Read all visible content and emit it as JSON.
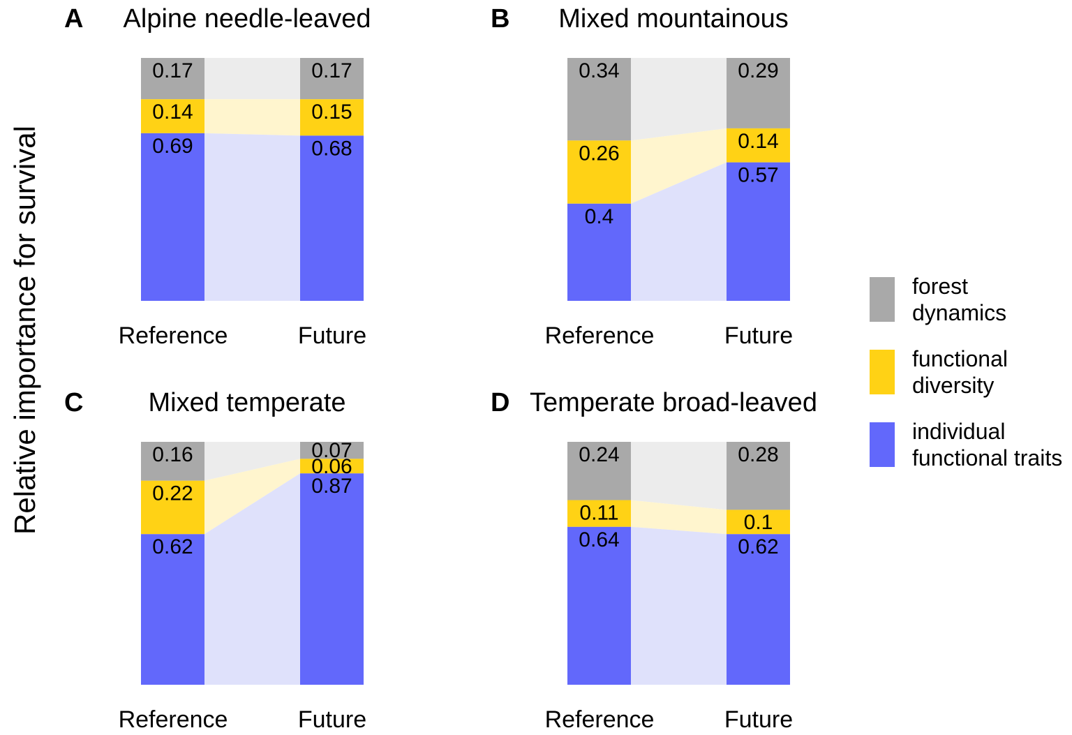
{
  "figure": {
    "ylabel": "Relative importance for survival",
    "x_categories": [
      "Reference",
      "Future"
    ],
    "colors": {
      "forest_dynamics": "#A9A9A9",
      "forest_dynamics_flow": "#ECECEC",
      "functional_diversity": "#FFD215",
      "functional_diversity_flow": "#FFF5CE",
      "individual_functional_traits": "#6268FB",
      "individual_functional_traits_flow": "#DFE1FB",
      "text": "#000000"
    },
    "legend": {
      "items": [
        {
          "key": "forest_dynamics",
          "lines": [
            "forest",
            "dynamics"
          ]
        },
        {
          "key": "functional_diversity",
          "lines": [
            "functional",
            "diversity"
          ]
        },
        {
          "key": "individual_functional_traits",
          "lines": [
            "individual",
            "functional traits"
          ]
        }
      ]
    }
  },
  "chart_data": [
    {
      "panel": "A",
      "title": "Alpine needle-leaved",
      "type": "bar",
      "variant": "stacked-alluvial",
      "categories": [
        "Reference",
        "Future"
      ],
      "ylim": [
        0,
        1
      ],
      "series": [
        {
          "name": "forest dynamics",
          "key": "forest_dynamics",
          "values": [
            0.17,
            0.17
          ],
          "labels": [
            "0.17",
            "0.17"
          ]
        },
        {
          "name": "functional diversity",
          "key": "functional_diversity",
          "values": [
            0.14,
            0.15
          ],
          "labels": [
            "0.14",
            "0.15"
          ]
        },
        {
          "name": "individual functional traits",
          "key": "individual_functional_traits",
          "values": [
            0.69,
            0.68
          ],
          "labels": [
            "0.69",
            "0.68"
          ]
        }
      ]
    },
    {
      "panel": "B",
      "title": "Mixed mountainous",
      "type": "bar",
      "variant": "stacked-alluvial",
      "categories": [
        "Reference",
        "Future"
      ],
      "ylim": [
        0,
        1
      ],
      "series": [
        {
          "name": "forest dynamics",
          "key": "forest_dynamics",
          "values": [
            0.34,
            0.29
          ],
          "labels": [
            "0.34",
            "0.29"
          ]
        },
        {
          "name": "functional diversity",
          "key": "functional_diversity",
          "values": [
            0.26,
            0.14
          ],
          "labels": [
            "0.26",
            "0.14"
          ]
        },
        {
          "name": "individual functional traits",
          "key": "individual_functional_traits",
          "values": [
            0.4,
            0.57
          ],
          "labels": [
            "0.4",
            "0.57"
          ]
        }
      ]
    },
    {
      "panel": "C",
      "title": "Mixed temperate",
      "type": "bar",
      "variant": "stacked-alluvial",
      "categories": [
        "Reference",
        "Future"
      ],
      "ylim": [
        0,
        1
      ],
      "series": [
        {
          "name": "forest dynamics",
          "key": "forest_dynamics",
          "values": [
            0.16,
            0.07
          ],
          "labels": [
            "0.16",
            "0.07"
          ]
        },
        {
          "name": "functional diversity",
          "key": "functional_diversity",
          "values": [
            0.22,
            0.06
          ],
          "labels": [
            "0.22",
            "0.06"
          ]
        },
        {
          "name": "individual functional traits",
          "key": "individual_functional_traits",
          "values": [
            0.62,
            0.87
          ],
          "labels": [
            "0.62",
            "0.87"
          ]
        }
      ]
    },
    {
      "panel": "D",
      "title": "Temperate broad-leaved",
      "type": "bar",
      "variant": "stacked-alluvial",
      "categories": [
        "Reference",
        "Future"
      ],
      "ylim": [
        0,
        1
      ],
      "series": [
        {
          "name": "forest dynamics",
          "key": "forest_dynamics",
          "values": [
            0.24,
            0.28
          ],
          "labels": [
            "0.24",
            "0.28"
          ]
        },
        {
          "name": "functional diversity",
          "key": "functional_diversity",
          "values": [
            0.11,
            0.1
          ],
          "labels": [
            "0.11",
            "0.1"
          ]
        },
        {
          "name": "individual functional traits",
          "key": "individual_functional_traits",
          "values": [
            0.64,
            0.62
          ],
          "labels": [
            "0.64",
            "0.62"
          ]
        }
      ]
    }
  ]
}
